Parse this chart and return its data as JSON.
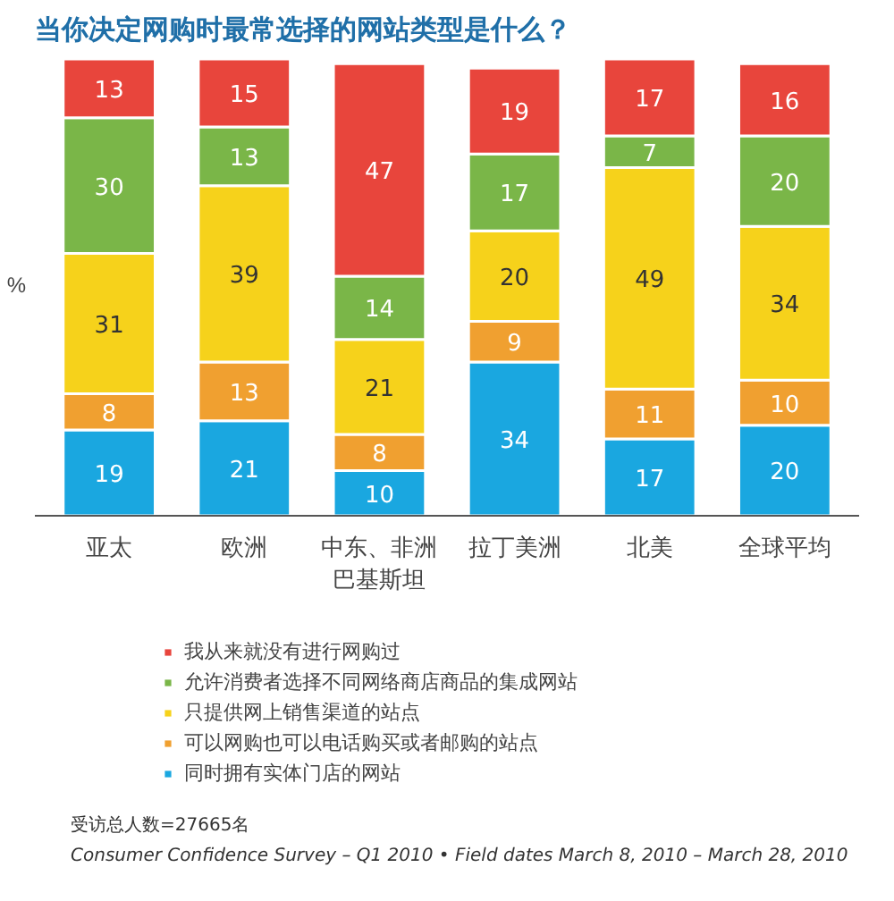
{
  "chart_data": {
    "type": "bar",
    "stacked": true,
    "title": "当你决定网购时最常选择的网站类型是什么？",
    "ylabel": "%",
    "categories": [
      "亚太",
      "欧洲",
      "中东、非洲巴基斯坦",
      "拉丁美洲",
      "北美",
      "全球平均"
    ],
    "series": [
      {
        "name": "同时拥有实体门店的网站",
        "color": "#1aa7e0",
        "values": [
          19,
          21,
          10,
          34,
          17,
          20
        ]
      },
      {
        "name": "可以网购也可以电话购买或者邮购的站点",
        "color": "#f0a030",
        "values": [
          8,
          13,
          8,
          9,
          11,
          10
        ]
      },
      {
        "name": "只提供网上销售渠道的站点",
        "color": "#f6d21b",
        "values": [
          31,
          39,
          21,
          20,
          49,
          34
        ]
      },
      {
        "name": "允许消费者选择不同网络商店商品的集成网站",
        "color": "#7ab648",
        "values": [
          30,
          13,
          14,
          17,
          7,
          20
        ]
      },
      {
        "name": "我从来就没有进行网购过",
        "color": "#e8453c",
        "values": [
          13,
          15,
          47,
          19,
          17,
          16
        ]
      }
    ],
    "data_labels": true,
    "legend": "bottom",
    "grid": false,
    "annotations": [
      "受访总人数=27665名",
      "Consumer Confidence Survey – Q1 2010 • Field dates March 8, 2010 – March 28, 2010"
    ]
  }
}
